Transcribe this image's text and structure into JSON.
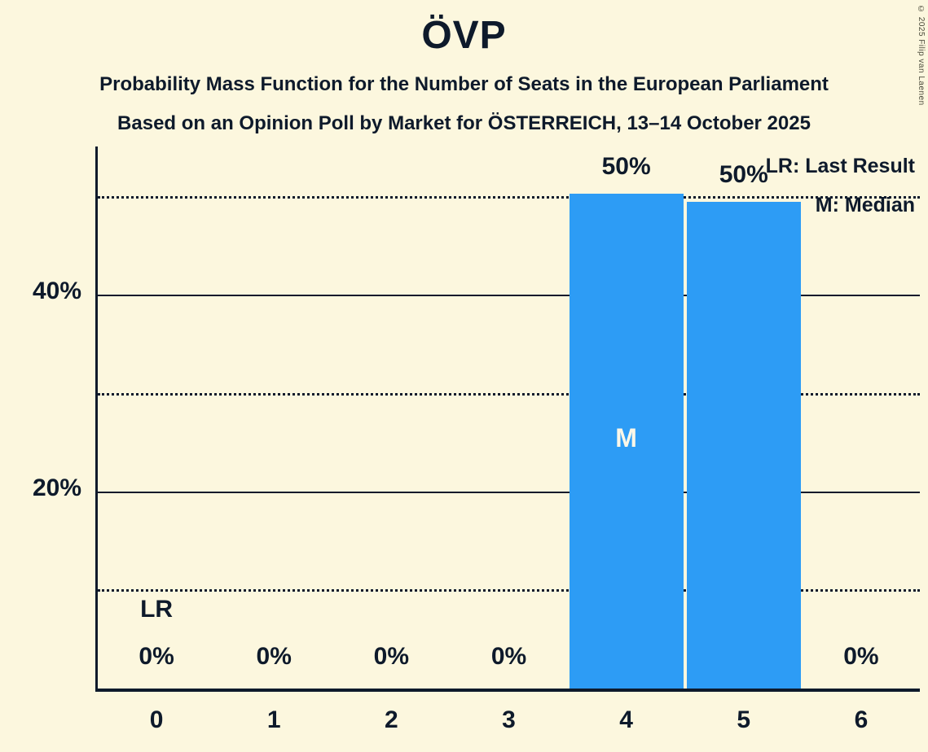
{
  "meta": {
    "copyright": "© 2025 Filip van Laenen"
  },
  "header": {
    "title": "ÖVP",
    "subtitle1": "Probability Mass Function for the Number of Seats in the European Parliament",
    "subtitle2": "Based on an Opinion Poll by Market for ÖSTERREICH, 13–14 October 2025"
  },
  "legend": {
    "lr": "LR: Last Result",
    "m": "M: Median"
  },
  "chart_data": {
    "type": "bar",
    "title": "ÖVP",
    "categories": [
      "0",
      "1",
      "2",
      "3",
      "4",
      "5",
      "6"
    ],
    "values": [
      0,
      0,
      0,
      0,
      50.4,
      49.5,
      0
    ],
    "labels": [
      "0%",
      "0%",
      "0%",
      "0%",
      "50%",
      "50%",
      "0%"
    ],
    "xlabel": "",
    "ylabel": "",
    "ylim": [
      0,
      55
    ],
    "ylabel_ticks": [
      {
        "value": 20,
        "label": "20%"
      },
      {
        "value": 40,
        "label": "40%"
      }
    ],
    "solid_gridlines": [
      20,
      40
    ],
    "dotted_gridlines": [
      10,
      30,
      50
    ],
    "median_index": 4,
    "median_marker": "M",
    "last_result_index": 0,
    "last_result_marker": "LR",
    "bar_color": "#2D9CF5",
    "background_color": "#FCF7DE",
    "text_color": "#0E1A2B",
    "legend_position": "top-right",
    "grid": "horizontal-only"
  }
}
